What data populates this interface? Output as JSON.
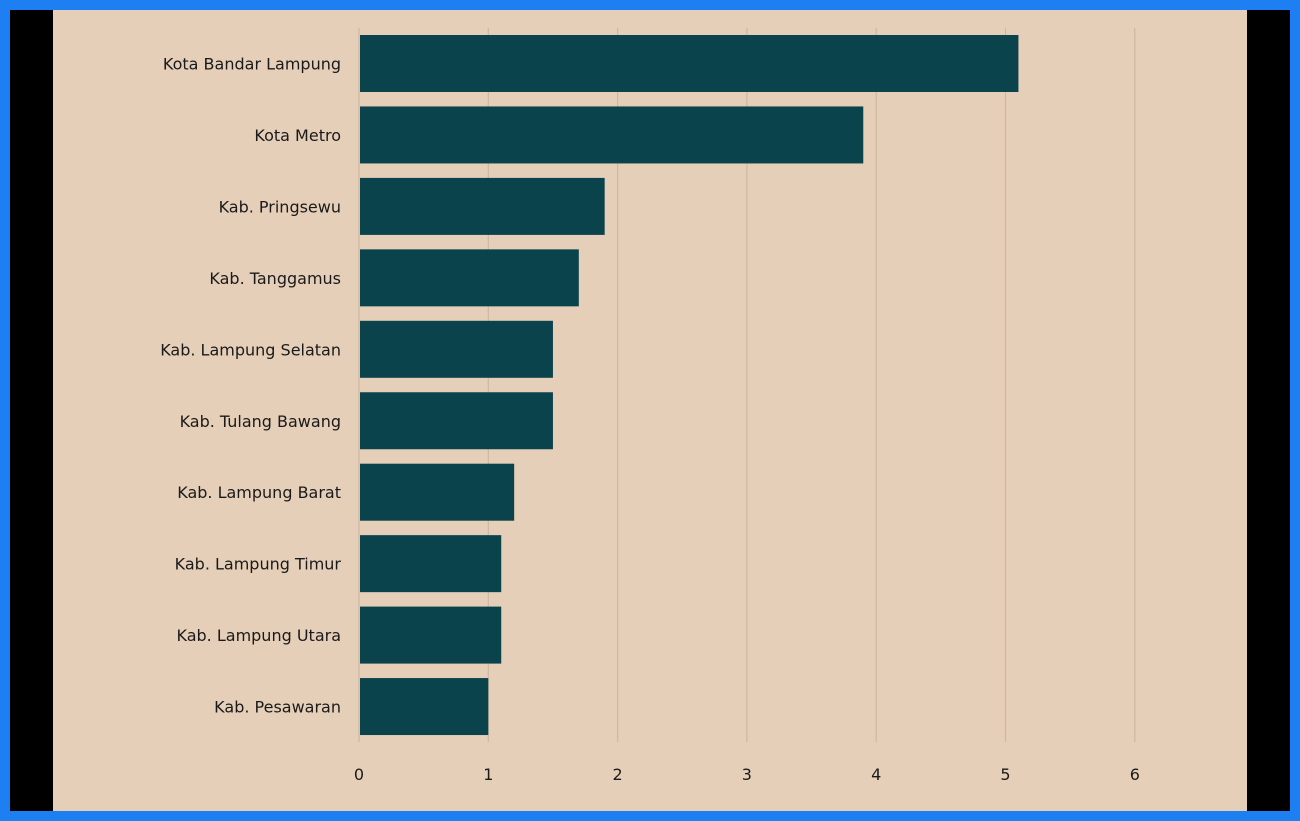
{
  "colors": {
    "outer_border": "#1e7ff2",
    "frame": "#000000",
    "background": "#e6cfb8",
    "bar": "#0b434d",
    "grid": "#cdb8a2",
    "text": "#1a1a1a"
  },
  "chart_data": {
    "type": "bar",
    "orientation": "horizontal",
    "categories": [
      "Kota Bandar Lampung",
      "Kota Metro",
      "Kab. Pringsewu",
      "Kab. Tanggamus",
      "Kab. Lampung Selatan",
      "Kab. Tulang Bawang",
      "Kab. Lampung Barat",
      "Kab. Lampung Timur",
      "Kab. Lampung Utara",
      "Kab. Pesawaran"
    ],
    "values": [
      5.1,
      3.9,
      1.9,
      1.7,
      1.5,
      1.5,
      1.2,
      1.1,
      1.1,
      1.0
    ],
    "title": "",
    "xlabel": "",
    "ylabel": "",
    "xlim": [
      0,
      6.5
    ],
    "x_ticks": [
      0,
      1,
      2,
      3,
      4,
      5,
      6
    ],
    "grid": "vertical",
    "legend": "none"
  }
}
